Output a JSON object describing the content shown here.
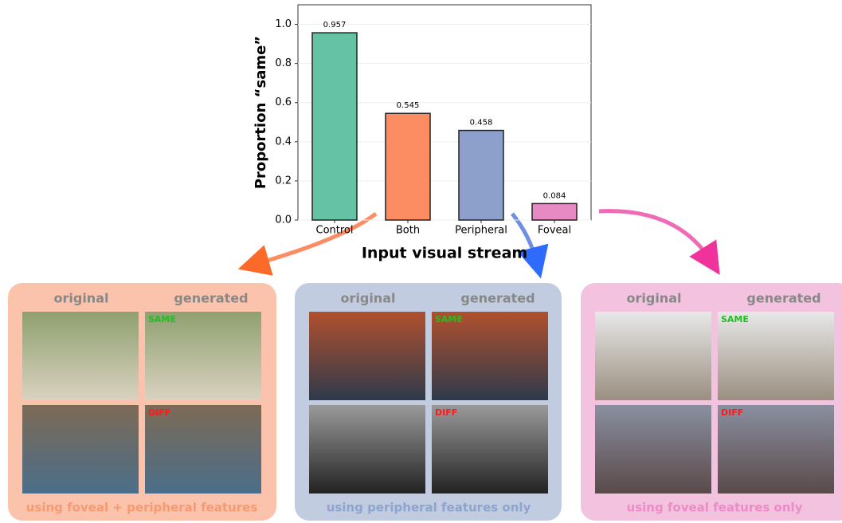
{
  "chart_data": {
    "type": "bar",
    "xlabel": "Input visual stream",
    "ylabel": "Proportion “same”",
    "categories": [
      "Control",
      "Both",
      "Peripheral",
      "Foveal"
    ],
    "values": [
      0.957,
      0.545,
      0.458,
      0.084
    ],
    "colors": [
      "#66c2a5",
      "#fc8d62",
      "#8da0cb",
      "#e78ac3"
    ],
    "ylim": [
      0,
      1.1
    ],
    "yticks": [
      {
        "value": 0,
        "label": "0.0"
      },
      0.2,
      0.4,
      0.6,
      0.8,
      {
        "value": 1,
        "label": "1.0"
      }
    ],
    "grid": true
  },
  "panels": [
    {
      "original_label": "original",
      "generated_label": "generated",
      "same_label": "SAME",
      "diff_label": "DIFF",
      "caption": "using foveal + peripheral features"
    },
    {
      "original_label": "original",
      "generated_label": "generated",
      "same_label": "SAME",
      "diff_label": "DIFF",
      "caption": "using peripheral features only"
    },
    {
      "original_label": "original",
      "generated_label": "generated",
      "same_label": "SAME",
      "diff_label": "DIFF",
      "caption": "using foveal features only"
    }
  ]
}
